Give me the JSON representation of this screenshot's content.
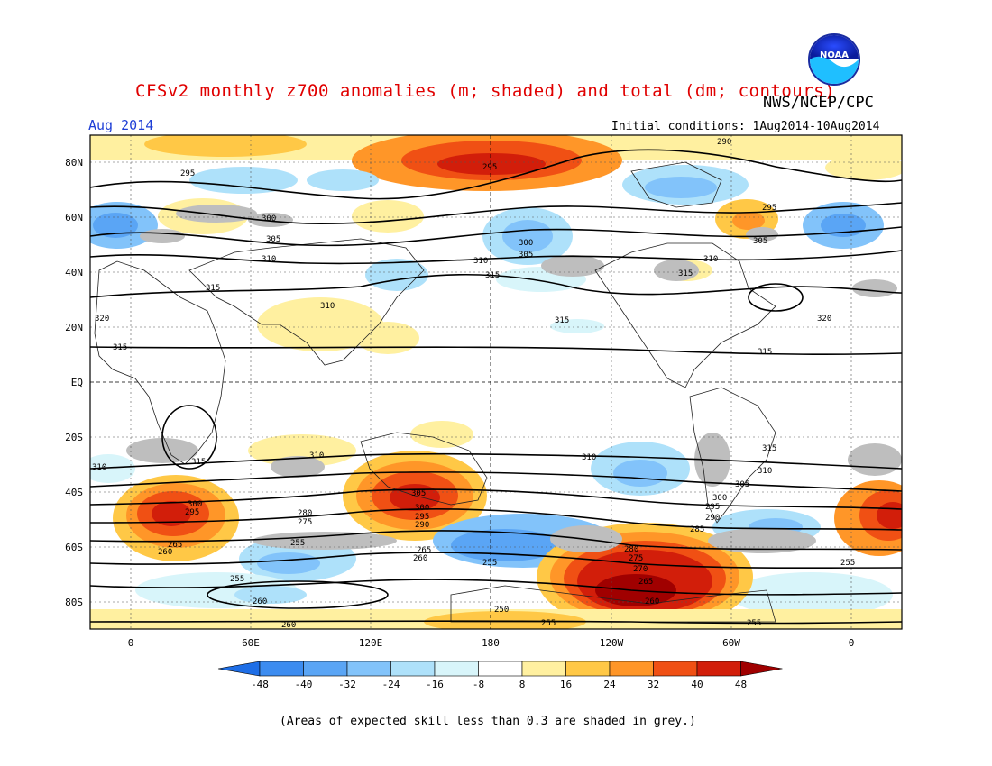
{
  "header": {
    "title": "CFSv2 monthly z700 anomalies (m; shaded) and total (dm; contours)",
    "agency": "NWS/NCEP/CPC",
    "month": "Aug 2014",
    "initial_conditions": "Initial conditions: 1Aug2014-10Aug2014",
    "logo_text": "NOAA"
  },
  "map": {
    "lat_labels": [
      "80N",
      "60N",
      "40N",
      "20N",
      "EQ",
      "20S",
      "40S",
      "60S",
      "80S"
    ],
    "lon_labels": [
      "0",
      "60E",
      "120E",
      "180",
      "120W",
      "60W",
      "0"
    ],
    "contour_labels": [
      "290",
      "295",
      "300",
      "305",
      "310",
      "315",
      "320",
      "315",
      "315",
      "310",
      "300",
      "295",
      "290",
      "285",
      "280",
      "275",
      "270",
      "265",
      "260",
      "255",
      "250"
    ]
  },
  "colorbar": {
    "ticks": [
      "-48",
      "-40",
      "-32",
      "-24",
      "-16",
      "-8",
      "8",
      "16",
      "24",
      "32",
      "40",
      "48"
    ],
    "colors": [
      "#1e6ee6",
      "#3c8cf0",
      "#5aa5f5",
      "#82c3fa",
      "#aee1fa",
      "#d8f5fa",
      "#ffffff",
      "#fff0a0",
      "#ffc846",
      "#ff9628",
      "#f05014",
      "#d21e0a",
      "#a00000"
    ]
  },
  "footnote": "(Areas of expected skill less than 0.3 are shaded in grey.)",
  "colors": {
    "title": "#e00000",
    "month": "#1f3fd6",
    "skill_grey": "#bebebe"
  }
}
